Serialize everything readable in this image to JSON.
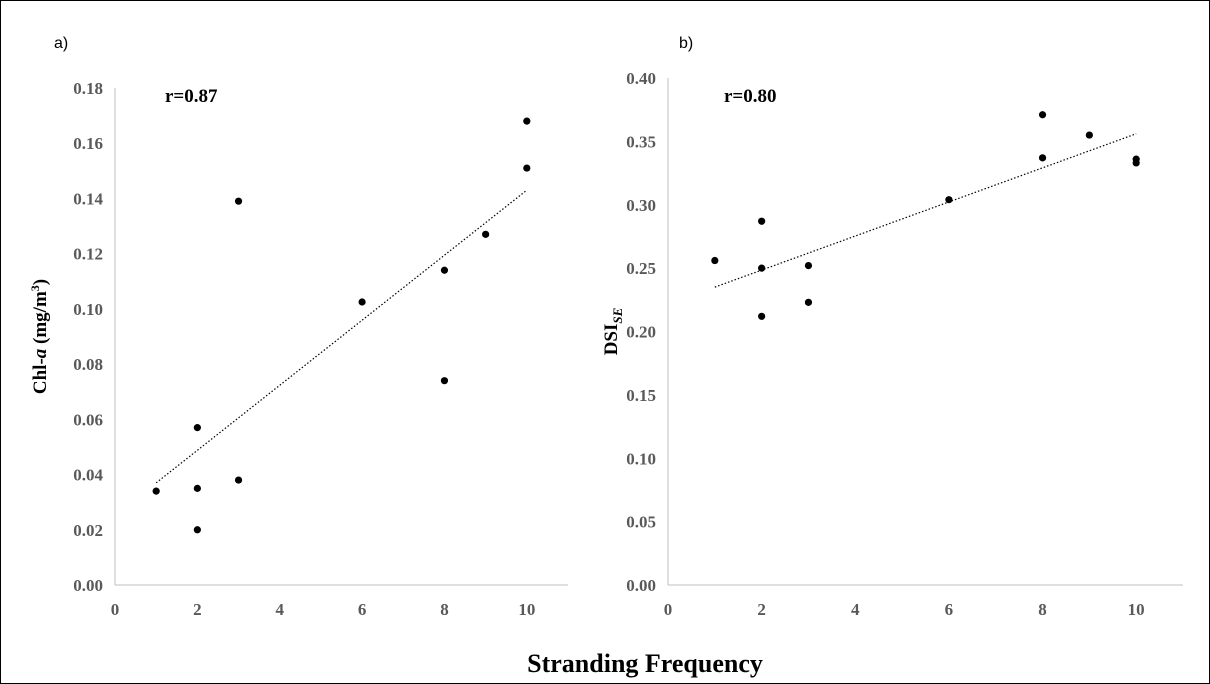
{
  "figure": {
    "xlabel_shared": "Stranding Frequency"
  },
  "chart_data": [
    {
      "type": "scatter",
      "panel_label": "a)",
      "annotation": "r=0.87",
      "ylabel": {
        "main": "Chl-",
        "italic": "a",
        "unit": " (mg/m",
        "sup": "3",
        "close": ")"
      },
      "xlim": [
        0,
        11
      ],
      "ylim": [
        0,
        0.18
      ],
      "xticks": [
        0,
        2,
        4,
        6,
        8,
        10
      ],
      "yticks": [
        0.0,
        0.02,
        0.04,
        0.06,
        0.08,
        0.1,
        0.12,
        0.14,
        0.16,
        0.18
      ],
      "ytick_decimals": 2,
      "grid": false,
      "points": [
        {
          "x": 1,
          "y": 0.034
        },
        {
          "x": 2,
          "y": 0.057
        },
        {
          "x": 2,
          "y": 0.035
        },
        {
          "x": 2,
          "y": 0.02
        },
        {
          "x": 3,
          "y": 0.139
        },
        {
          "x": 3,
          "y": 0.038
        },
        {
          "x": 6,
          "y": 0.1025
        },
        {
          "x": 8,
          "y": 0.114
        },
        {
          "x": 8,
          "y": 0.074
        },
        {
          "x": 9,
          "y": 0.127
        },
        {
          "x": 10,
          "y": 0.168
        },
        {
          "x": 10,
          "y": 0.151
        }
      ],
      "trendline": {
        "style": "dotted",
        "x": [
          1,
          10
        ],
        "y": [
          0.037,
          0.143
        ]
      }
    },
    {
      "type": "scatter",
      "panel_label": "b)",
      "annotation": "r=0.80",
      "ylabel": {
        "main": "DSI",
        "sub": "SE"
      },
      "xlim": [
        0,
        11
      ],
      "ylim": [
        0,
        0.4
      ],
      "xticks": [
        0,
        2,
        4,
        6,
        8,
        10
      ],
      "yticks": [
        0.0,
        0.05,
        0.1,
        0.15,
        0.2,
        0.25,
        0.3,
        0.35,
        0.4
      ],
      "ytick_decimals": 2,
      "grid": false,
      "points": [
        {
          "x": 1,
          "y": 0.256
        },
        {
          "x": 2,
          "y": 0.287
        },
        {
          "x": 2,
          "y": 0.25
        },
        {
          "x": 2,
          "y": 0.212
        },
        {
          "x": 3,
          "y": 0.252
        },
        {
          "x": 3,
          "y": 0.223
        },
        {
          "x": 6,
          "y": 0.304
        },
        {
          "x": 8,
          "y": 0.371
        },
        {
          "x": 8,
          "y": 0.337
        },
        {
          "x": 9,
          "y": 0.355
        },
        {
          "x": 10,
          "y": 0.336
        },
        {
          "x": 10,
          "y": 0.333
        }
      ],
      "trendline": {
        "style": "dotted",
        "x": [
          1,
          10
        ],
        "y": [
          0.235,
          0.356
        ]
      }
    }
  ]
}
